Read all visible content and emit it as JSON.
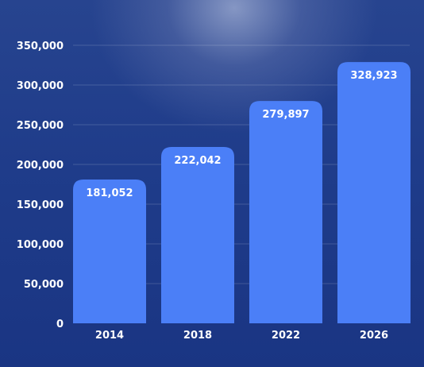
{
  "chart_data": {
    "type": "bar",
    "title": "",
    "xlabel": "",
    "ylabel": "",
    "categories": [
      "2014",
      "2018",
      "2022",
      "2026"
    ],
    "values": [
      181052,
      222042,
      279897,
      328923
    ],
    "value_labels": [
      "181,052",
      "222,042",
      "279,897",
      "328,923"
    ],
    "ylim": [
      0,
      350000
    ],
    "yticks": [
      0,
      50000,
      100000,
      150000,
      200000,
      250000,
      300000,
      350000
    ],
    "ytick_labels": [
      "0",
      "50,000",
      "100,000",
      "150,000",
      "200,000",
      "250,000",
      "300,000",
      "350,000"
    ],
    "grid": true,
    "bar_color": "#4b7ff7",
    "background_color": "#1f3c8a",
    "text_color": "#ffffff"
  }
}
